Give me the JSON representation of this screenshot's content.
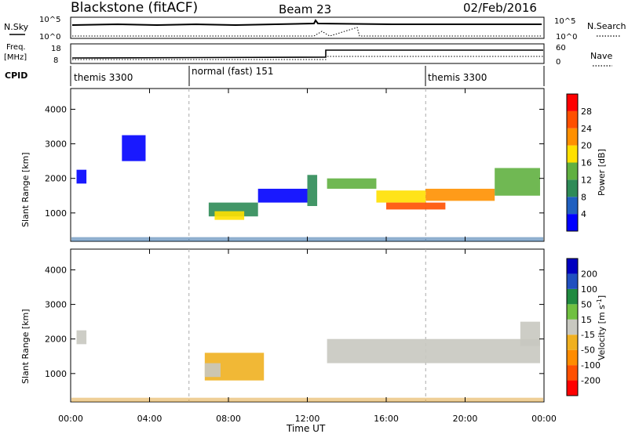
{
  "header": {
    "station": "Blackstone (fitACF)",
    "beam": "Beam 23",
    "date": "02/Feb/2016"
  },
  "left_labels": {
    "nsky": "N.Sky",
    "nsky_ticks": [
      "10^5",
      "10^0"
    ],
    "freq_top": "Freq.",
    "freq_unit": "[MHz]",
    "freq_ticks": [
      "18",
      "8"
    ],
    "cpid": "CPID"
  },
  "right_labels": {
    "nsearch": "N.Search",
    "nsky_ticks": [
      "10^5",
      "10^0"
    ],
    "nave": "Nave",
    "nave_ticks": [
      "60",
      "0"
    ]
  },
  "cpid_segments": [
    {
      "start": 0.0,
      "end": 6.0,
      "label": "themis 3300"
    },
    {
      "start": 6.0,
      "end": 18.0,
      "label": "normal (fast) 151"
    },
    {
      "start": 18.0,
      "end": 24.0,
      "label": "themis 3300"
    }
  ],
  "power_colorbar": {
    "label": "Power [dB]",
    "ticks": [
      "4",
      "8",
      "12",
      "16",
      "20",
      "24",
      "28"
    ],
    "colors": [
      "#0000ff",
      "#2060c0",
      "#2e8b57",
      "#60b040",
      "#ffe000",
      "#ff9000",
      "#ff5000",
      "#ff0000"
    ]
  },
  "velocity_colorbar": {
    "label": "Velocity [m s",
    "label_sup": "-1",
    "label_end": "]",
    "ticks": [
      "-200",
      "-100",
      "-50",
      "-15",
      "15",
      "50",
      "100",
      "200"
    ],
    "colors": [
      "#ff0000",
      "#ff5000",
      "#ff8c00",
      "#f0b020",
      "#c8c8c0",
      "#70c040",
      "#208a40",
      "#2050c0",
      "#0000c0"
    ]
  },
  "chart_data": {
    "type": "heatmap",
    "xlabel": "Time UT",
    "x_ticks": [
      "00:00",
      "04:00",
      "08:00",
      "12:00",
      "16:00",
      "20:00",
      "00:00"
    ],
    "xlim": [
      0,
      24
    ],
    "ylabel": "Slant Range [km]",
    "y_ticks": [
      "1000",
      "2000",
      "3000",
      "4000"
    ],
    "ylim": [
      180,
      4600
    ],
    "panels": [
      {
        "name": "power",
        "regions": [
          {
            "t0": 0.3,
            "t1": 0.8,
            "r0": 1850,
            "r1": 2250,
            "level": 0
          },
          {
            "t0": 2.6,
            "t1": 3.8,
            "r0": 2500,
            "r1": 3250,
            "level": 0
          },
          {
            "t0": 7.0,
            "t1": 9.5,
            "r0": 900,
            "r1": 1300,
            "level": 2
          },
          {
            "t0": 7.3,
            "t1": 8.8,
            "r0": 800,
            "r1": 1050,
            "level": 4
          },
          {
            "t0": 9.5,
            "t1": 12.0,
            "r0": 1300,
            "r1": 1700,
            "level": 0
          },
          {
            "t0": 12.0,
            "t1": 12.5,
            "r0": 1200,
            "r1": 2100,
            "level": 2
          },
          {
            "t0": 13.0,
            "t1": 15.5,
            "r0": 1700,
            "r1": 2000,
            "level": 3
          },
          {
            "t0": 15.5,
            "t1": 18.0,
            "r0": 1300,
            "r1": 1650,
            "level": 4
          },
          {
            "t0": 18.0,
            "t1": 21.5,
            "r0": 1350,
            "r1": 1700,
            "level": 5
          },
          {
            "t0": 21.5,
            "t1": 23.8,
            "r0": 1500,
            "r1": 2300,
            "level": 3
          },
          {
            "t0": 16.0,
            "t1": 19.0,
            "r0": 1100,
            "r1": 1300,
            "level": 6
          }
        ]
      },
      {
        "name": "velocity",
        "regions": [
          {
            "t0": 0.3,
            "t1": 0.8,
            "r0": 1850,
            "r1": 2250,
            "level": 4
          },
          {
            "t0": 6.8,
            "t1": 9.8,
            "r0": 800,
            "r1": 1600,
            "level": 3
          },
          {
            "t0": 6.8,
            "t1": 7.6,
            "r0": 900,
            "r1": 1300,
            "level": 4
          },
          {
            "t0": 13.0,
            "t1": 23.8,
            "r0": 1300,
            "r1": 2000,
            "level": 4
          },
          {
            "t0": 22.8,
            "t1": 23.8,
            "r0": 1800,
            "r1": 2500,
            "level": 4
          }
        ]
      }
    ]
  }
}
